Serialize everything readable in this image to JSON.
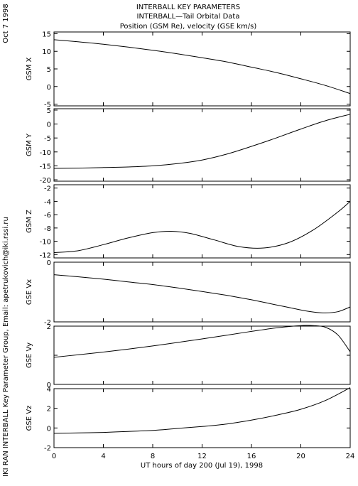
{
  "header": {
    "title": "INTERBALL KEY PARAMETERS",
    "subtitle": "INTERBALL—Tail Orbital Data",
    "subtitle2": "Position (GSM Re), velocity (GSE km/s)"
  },
  "side": {
    "date": "Oct  7 1998",
    "credit": "IKI RAN INTERBALL Key Parameter Group, Email: apetrukovich@iki.rssi.ru"
  },
  "xaxis": {
    "label": "UT hours of day 200 (Jul 19), 1998",
    "ticks": [
      0,
      4,
      8,
      12,
      16,
      20,
      24
    ],
    "range": [
      0,
      24
    ]
  },
  "chart_data": [
    {
      "type": "line",
      "ylabel": "GSM X",
      "ylim": [
        -5.5,
        15.5
      ],
      "yticks": [
        -5,
        0,
        5,
        10,
        15
      ],
      "x": [
        0,
        2,
        4,
        6,
        8,
        10,
        12,
        14,
        16,
        18,
        20,
        22,
        24
      ],
      "values": [
        13.3,
        12.7,
        12.0,
        11.2,
        10.3,
        9.3,
        8.2,
        7.0,
        5.5,
        4.0,
        2.2,
        0.3,
        -2.0
      ]
    },
    {
      "type": "line",
      "ylabel": "GSM Y",
      "ylim": [
        -20.5,
        5.5
      ],
      "yticks": [
        -20,
        -15,
        -10,
        -5,
        0,
        5
      ],
      "x": [
        0,
        2,
        4,
        6,
        8,
        10,
        12,
        14,
        16,
        18,
        20,
        22,
        24
      ],
      "values": [
        -15.9,
        -15.8,
        -15.6,
        -15.4,
        -15.0,
        -14.2,
        -12.9,
        -10.8,
        -8.0,
        -5.0,
        -1.8,
        1.2,
        3.5
      ]
    },
    {
      "type": "line",
      "ylabel": "GSM Z",
      "ylim": [
        -12.5,
        -1.5
      ],
      "yticks": [
        -12,
        -10,
        -8,
        -6,
        -4,
        -2
      ],
      "x": [
        0,
        2,
        4,
        6,
        8,
        9.5,
        11,
        13,
        15,
        17,
        19,
        21,
        23,
        24
      ],
      "values": [
        -11.7,
        -11.4,
        -10.5,
        -9.5,
        -8.7,
        -8.5,
        -8.8,
        -9.8,
        -10.8,
        -11.0,
        -10.2,
        -8.3,
        -5.6,
        -4.0
      ]
    },
    {
      "type": "line",
      "ylabel": "GSE Vx",
      "ylim": [
        -2,
        0
      ],
      "yticks": [
        -2,
        0
      ],
      "ytick_labels": [
        "-2",
        "0"
      ],
      "x": [
        0,
        2,
        4,
        6,
        8,
        10,
        12,
        14,
        16,
        18,
        20,
        21,
        22,
        23,
        24
      ],
      "values": [
        -0.42,
        -0.49,
        -0.57,
        -0.66,
        -0.75,
        -0.86,
        -0.98,
        -1.11,
        -1.26,
        -1.43,
        -1.6,
        -1.67,
        -1.7,
        -1.66,
        -1.5
      ]
    },
    {
      "type": "line",
      "ylabel": "GSE Vy",
      "ylim": [
        0,
        2
      ],
      "yticks": [
        0,
        1,
        2
      ],
      "ytick_labels": [
        "0",
        "",
        "2"
      ],
      "x": [
        0,
        2,
        4,
        6,
        8,
        10,
        12,
        14,
        16,
        18,
        20,
        21,
        22,
        23,
        24
      ],
      "values": [
        0.93,
        1.02,
        1.11,
        1.21,
        1.32,
        1.44,
        1.56,
        1.69,
        1.82,
        1.94,
        2.02,
        2.02,
        1.96,
        1.7,
        1.12
      ]
    },
    {
      "type": "line",
      "ylabel": "GSE Vz",
      "ylim": [
        -2,
        4
      ],
      "yticks": [
        -2,
        0,
        2,
        4
      ],
      "x": [
        0,
        2,
        4,
        6,
        8,
        10,
        12,
        14,
        16,
        18,
        20,
        22,
        24
      ],
      "values": [
        -0.55,
        -0.5,
        -0.45,
        -0.35,
        -0.25,
        -0.05,
        0.15,
        0.4,
        0.8,
        1.3,
        1.9,
        2.8,
        4.1
      ]
    }
  ]
}
